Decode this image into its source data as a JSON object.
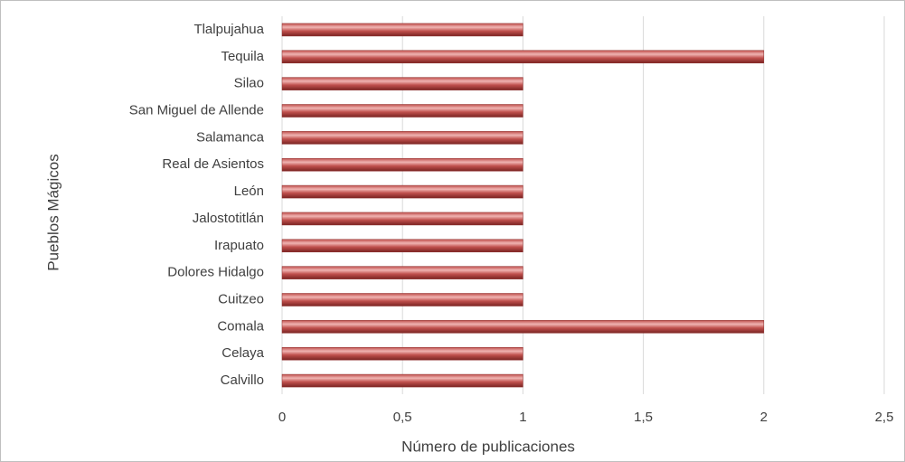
{
  "chart_data": {
    "type": "bar",
    "orientation": "horizontal",
    "x_label": "Número de publicaciones",
    "y_label": "Pueblos Mágicos",
    "categories": [
      "Tlalpujahua",
      "Tequila",
      "Silao",
      "San Miguel de Allende",
      "Salamanca",
      "Real de Asientos",
      "León",
      "Jalostotitlán",
      "Irapuato",
      "Dolores Hidalgo",
      "Cuitzeo",
      "Comala",
      "Celaya",
      "Calvillo"
    ],
    "values": [
      1,
      2,
      1,
      1,
      1,
      1,
      1,
      1,
      1,
      1,
      1,
      2,
      1,
      1
    ],
    "color": "#c0504d",
    "xlim": [
      0,
      2.5
    ],
    "xticks": [
      0,
      {
        "value": 0.5,
        "label": "0,5"
      },
      1,
      {
        "value": 1.5,
        "label": "1,5"
      },
      2,
      {
        "value": 2.5,
        "label": "2,5"
      }
    ],
    "grid": true
  }
}
